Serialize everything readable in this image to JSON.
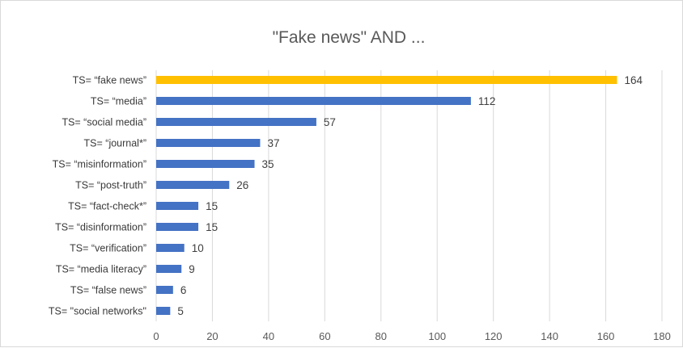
{
  "chart_data": {
    "type": "bar",
    "orientation": "horizontal",
    "title": "\"Fake news\" AND ...",
    "xlabel": "",
    "ylabel": "",
    "xlim": [
      0,
      180
    ],
    "x_ticks": [
      "0",
      "20",
      "40",
      "60",
      "80",
      "100",
      "120",
      "140",
      "160",
      "180"
    ],
    "grid": "vertical",
    "legend": "none",
    "categories": [
      "TS= “fake news”",
      "TS= “media”",
      "TS= “social media”",
      "TS= “journal*”",
      "TS= “misinformation”",
      "TS= “post-truth”",
      "TS= “fact-check*”",
      "TS= “disinformation”",
      "TS= “verification”",
      "TS= “media literacy”",
      "TS= “false news”",
      "TS= \"social networks\""
    ],
    "values": [
      164,
      112,
      57,
      37,
      35,
      26,
      15,
      15,
      10,
      9,
      6,
      5
    ],
    "value_labels": [
      "164",
      "112",
      "57",
      "37",
      "35",
      "26",
      "15",
      "15",
      "10",
      "9",
      "6",
      "5"
    ],
    "colors": {
      "highlight": "#ffc000",
      "bar": "#4472c4",
      "grid": "#d9d9d9",
      "title": "#595959",
      "text": "#3a3a3a"
    },
    "highlight_index": 0
  }
}
